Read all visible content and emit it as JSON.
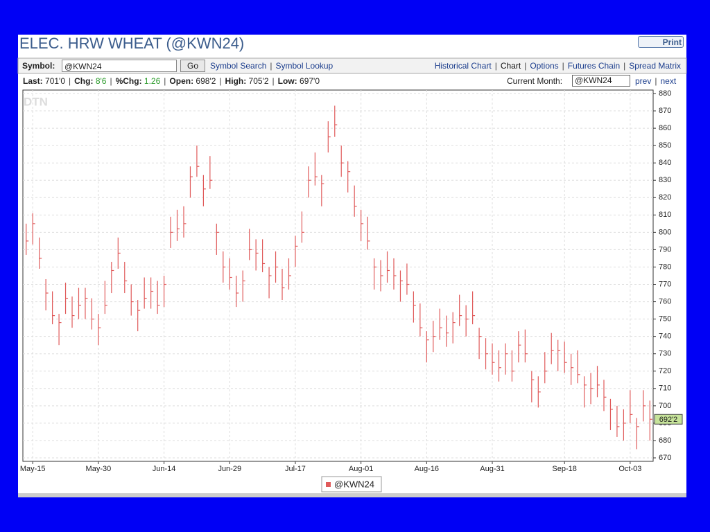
{
  "header": {
    "title": "ELEC. HRW WHEAT  (@KWN24)",
    "print_button": "Print"
  },
  "toolbar": {
    "symbol_label": "Symbol:",
    "symbol_input": "@KWN24",
    "go_button": "Go",
    "links_left": [
      "Symbol Search",
      "Symbol Lookup"
    ],
    "links_right": [
      "Historical Chart",
      "Chart",
      "Options",
      "Futures Chain",
      "Spread Matrix"
    ]
  },
  "quote": {
    "items": [
      {
        "label": "Last:",
        "value": "701'0"
      },
      {
        "label": "Chg:",
        "value": "8'6"
      },
      {
        "label": "%Chg:",
        "value": "1.26"
      },
      {
        "label": "Open:",
        "value": "698'2"
      },
      {
        "label": "High:",
        "value": "705'2"
      },
      {
        "label": "Low:",
        "value": "697'0"
      }
    ],
    "current_month_label": "Current Month:",
    "month_select": "@KWN24",
    "prev": "prev",
    "next": "next"
  },
  "chart_data": {
    "type": "ohlc",
    "watermark": "DTN",
    "categories": [
      null,
      "May-15",
      null,
      null,
      null,
      null,
      null,
      null,
      null,
      null,
      null,
      "May-30",
      null,
      null,
      null,
      null,
      null,
      null,
      null,
      null,
      null,
      "Jun-14",
      null,
      null,
      null,
      null,
      null,
      null,
      null,
      null,
      null,
      "Jun-29",
      null,
      null,
      null,
      null,
      null,
      null,
      null,
      null,
      null,
      "Jul-17",
      null,
      null,
      null,
      null,
      null,
      null,
      null,
      null,
      null,
      "Aug-01",
      null,
      null,
      null,
      null,
      null,
      null,
      null,
      null,
      null,
      "Aug-16",
      null,
      null,
      null,
      null,
      null,
      null,
      null,
      null,
      null,
      "Aug-31",
      null,
      null,
      null,
      null,
      null,
      null,
      null,
      null,
      null,
      null,
      "Sep-18",
      null,
      null,
      null,
      null,
      null,
      null,
      null,
      null,
      null,
      "Oct-03",
      null,
      null,
      null
    ],
    "series": [
      {
        "name": "@KWN24",
        "color": "#e05a5a",
        "high": [
          805,
          811,
          797,
          773,
          766,
          753,
          771,
          763,
          768,
          768,
          762,
          753,
          772,
          783,
          797,
          783,
          770,
          761,
          774,
          774,
          772,
          775,
          809,
          813,
          815,
          838,
          850,
          833,
          844,
          805,
          789,
          785,
          775,
          778,
          802,
          796,
          796,
          780,
          789,
          779,
          785,
          798,
          812,
          838,
          846,
          833,
          864,
          873,
          850,
          841,
          827,
          813,
          809,
          785,
          784,
          789,
          785,
          778,
          782,
          766,
          759,
          743,
          749,
          756,
          752,
          754,
          764,
          758,
          766,
          745,
          739,
          736,
          732,
          736,
          732,
          743,
          744,
          720,
          717,
          731,
          742,
          738,
          737,
          730,
          732,
          717,
          719,
          723,
          715,
          704,
          700,
          698,
          709,
          693,
          709,
          703
        ],
        "low": [
          787,
          793,
          779,
          755,
          747,
          735,
          753,
          745,
          750,
          750,
          744,
          735,
          753,
          765,
          779,
          765,
          752,
          743,
          756,
          756,
          753,
          757,
          791,
          795,
          797,
          820,
          832,
          815,
          825,
          787,
          771,
          767,
          757,
          760,
          784,
          778,
          777,
          762,
          771,
          761,
          767,
          780,
          794,
          820,
          827,
          815,
          846,
          855,
          832,
          823,
          809,
          795,
          790,
          767,
          766,
          771,
          767,
          760,
          764,
          748,
          740,
          725,
          731,
          738,
          734,
          736,
          746,
          740,
          747,
          727,
          721,
          718,
          714,
          718,
          714,
          725,
          725,
          702,
          699,
          713,
          724,
          720,
          719,
          712,
          713,
          699,
          701,
          705,
          697,
          686,
          682,
          680,
          690,
          675,
          691,
          680
        ],
        "close": [
          795,
          805,
          785,
          765,
          752,
          748,
          762,
          752,
          758,
          762,
          750,
          745,
          758,
          778,
          788,
          772,
          760,
          755,
          762,
          766,
          758,
          770,
          800,
          802,
          805,
          832,
          838,
          825,
          830,
          800,
          780,
          774,
          765,
          772,
          790,
          788,
          782,
          775,
          780,
          768,
          775,
          792,
          800,
          830,
          832,
          828,
          855,
          862,
          840,
          835,
          815,
          805,
          795,
          780,
          775,
          778,
          775,
          772,
          770,
          758,
          745,
          738,
          740,
          745,
          742,
          748,
          752,
          750,
          752,
          740,
          730,
          725,
          722,
          730,
          720,
          735,
          730,
          715,
          708,
          720,
          732,
          732,
          725,
          722,
          718,
          712,
          710,
          712,
          705,
          698,
          688,
          690,
          695,
          688,
          700,
          692.25
        ]
      }
    ],
    "last_price": {
      "value": 692.25,
      "label": "692'2"
    },
    "ylim": [
      668,
      882
    ],
    "yticks": [
      670,
      680,
      690,
      700,
      710,
      720,
      730,
      740,
      750,
      760,
      770,
      780,
      790,
      800,
      810,
      820,
      830,
      840,
      850,
      860,
      870,
      880
    ],
    "grid": true,
    "legend": "bottom"
  }
}
